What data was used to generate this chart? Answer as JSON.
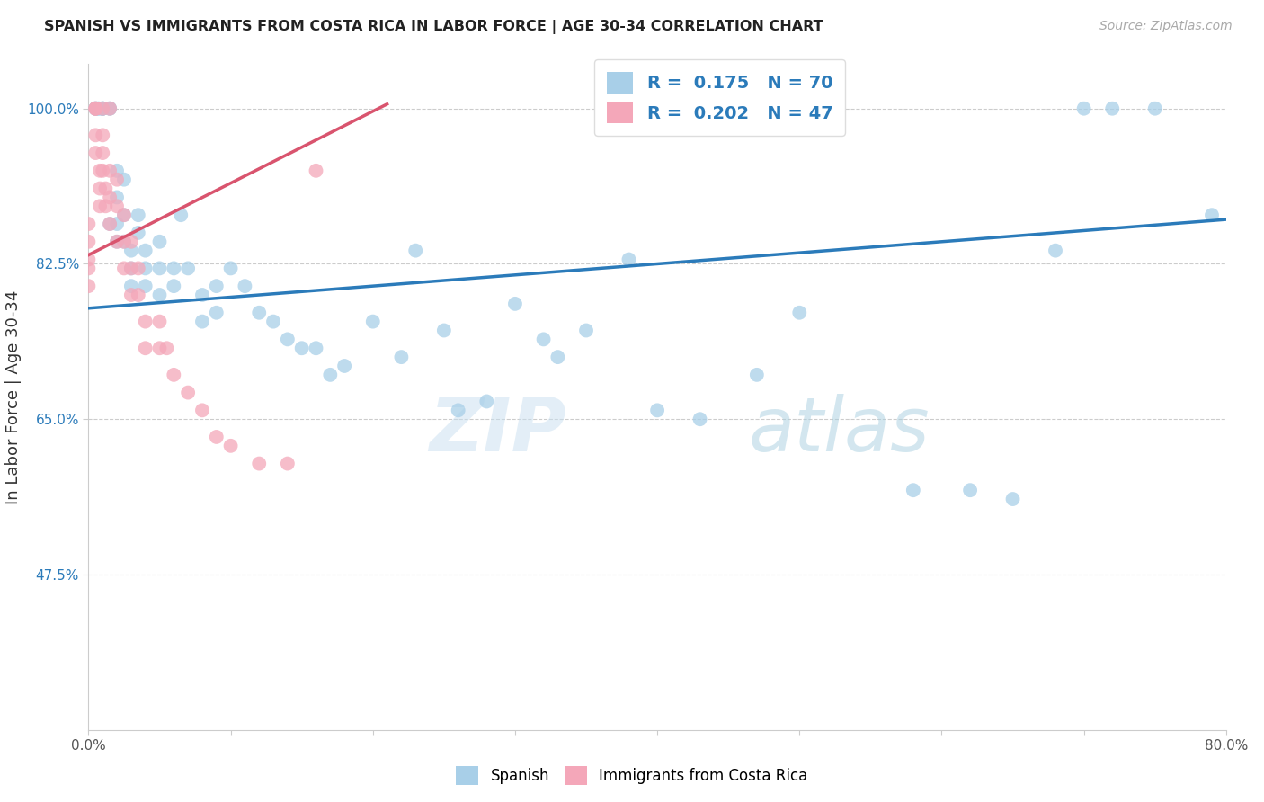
{
  "title": "SPANISH VS IMMIGRANTS FROM COSTA RICA IN LABOR FORCE | AGE 30-34 CORRELATION CHART",
  "source": "Source: ZipAtlas.com",
  "ylabel": "In Labor Force | Age 30-34",
  "xlim": [
    0.0,
    0.8
  ],
  "ylim": [
    0.3,
    1.05
  ],
  "xticks": [
    0.0,
    0.1,
    0.2,
    0.3,
    0.4,
    0.5,
    0.6,
    0.7,
    0.8
  ],
  "xticklabels": [
    "0.0%",
    "",
    "",
    "",
    "",
    "",
    "",
    "",
    "80.0%"
  ],
  "yticks": [
    0.475,
    0.65,
    0.825,
    1.0
  ],
  "yticklabels": [
    "47.5%",
    "65.0%",
    "82.5%",
    "100.0%"
  ],
  "blue_R": 0.175,
  "blue_N": 70,
  "pink_R": 0.202,
  "pink_N": 47,
  "blue_color": "#a8cfe8",
  "pink_color": "#f4a7b9",
  "blue_line_color": "#2b7bba",
  "pink_line_color": "#d9546e",
  "grid_color": "#cccccc",
  "watermark_zip": "ZIP",
  "watermark_atlas": "atlas",
  "blue_scatter_x": [
    0.005,
    0.005,
    0.005,
    0.007,
    0.007,
    0.01,
    0.01,
    0.01,
    0.01,
    0.015,
    0.015,
    0.015,
    0.02,
    0.02,
    0.02,
    0.02,
    0.025,
    0.025,
    0.025,
    0.03,
    0.03,
    0.03,
    0.035,
    0.035,
    0.04,
    0.04,
    0.04,
    0.05,
    0.05,
    0.05,
    0.06,
    0.06,
    0.065,
    0.07,
    0.08,
    0.08,
    0.09,
    0.09,
    0.1,
    0.11,
    0.12,
    0.13,
    0.14,
    0.15,
    0.16,
    0.17,
    0.18,
    0.2,
    0.22,
    0.23,
    0.25,
    0.26,
    0.28,
    0.3,
    0.32,
    0.33,
    0.35,
    0.38,
    0.4,
    0.43,
    0.47,
    0.5,
    0.58,
    0.62,
    0.65,
    0.68,
    0.7,
    0.72,
    0.75,
    0.79
  ],
  "blue_scatter_y": [
    1.0,
    1.0,
    1.0,
    1.0,
    1.0,
    1.0,
    1.0,
    1.0,
    1.0,
    1.0,
    1.0,
    0.87,
    0.93,
    0.9,
    0.87,
    0.85,
    0.92,
    0.88,
    0.85,
    0.84,
    0.82,
    0.8,
    0.88,
    0.86,
    0.84,
    0.82,
    0.8,
    0.85,
    0.82,
    0.79,
    0.82,
    0.8,
    0.88,
    0.82,
    0.79,
    0.76,
    0.8,
    0.77,
    0.82,
    0.8,
    0.77,
    0.76,
    0.74,
    0.73,
    0.73,
    0.7,
    0.71,
    0.76,
    0.72,
    0.84,
    0.75,
    0.66,
    0.67,
    0.78,
    0.74,
    0.72,
    0.75,
    0.83,
    0.66,
    0.65,
    0.7,
    0.77,
    0.57,
    0.57,
    0.56,
    0.84,
    1.0,
    1.0,
    1.0,
    0.88
  ],
  "pink_scatter_x": [
    0.0,
    0.0,
    0.0,
    0.0,
    0.0,
    0.005,
    0.005,
    0.005,
    0.005,
    0.005,
    0.008,
    0.008,
    0.008,
    0.01,
    0.01,
    0.01,
    0.01,
    0.012,
    0.012,
    0.015,
    0.015,
    0.015,
    0.015,
    0.02,
    0.02,
    0.02,
    0.025,
    0.025,
    0.025,
    0.03,
    0.03,
    0.03,
    0.035,
    0.035,
    0.04,
    0.04,
    0.05,
    0.05,
    0.055,
    0.06,
    0.07,
    0.08,
    0.09,
    0.1,
    0.12,
    0.14,
    0.16
  ],
  "pink_scatter_y": [
    0.87,
    0.85,
    0.83,
    0.82,
    0.8,
    1.0,
    1.0,
    1.0,
    0.97,
    0.95,
    0.93,
    0.91,
    0.89,
    1.0,
    0.97,
    0.95,
    0.93,
    0.91,
    0.89,
    1.0,
    0.93,
    0.9,
    0.87,
    0.92,
    0.89,
    0.85,
    0.88,
    0.85,
    0.82,
    0.85,
    0.82,
    0.79,
    0.82,
    0.79,
    0.76,
    0.73,
    0.76,
    0.73,
    0.73,
    0.7,
    0.68,
    0.66,
    0.63,
    0.62,
    0.6,
    0.6,
    0.93
  ]
}
